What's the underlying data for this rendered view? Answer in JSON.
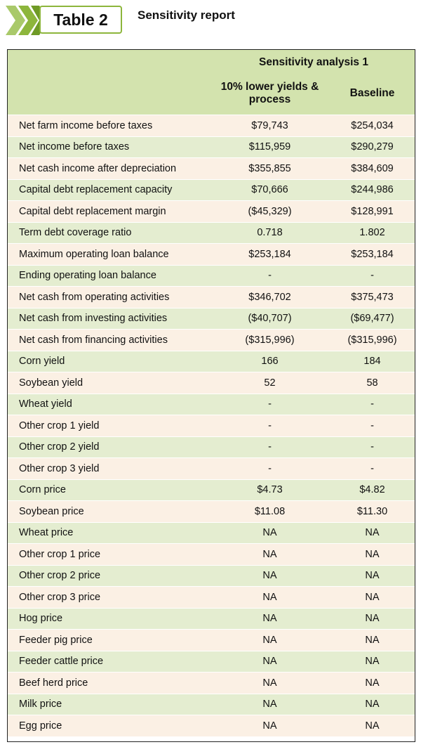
{
  "tag": "Table 2",
  "title": "Sensitivity report",
  "colors": {
    "green": "#8db63c",
    "header_bg": "#d3e3ae",
    "row_light": "#fbf0e4",
    "row_green": "#e4edd0"
  },
  "table": {
    "group_header": "Sensitivity analysis 1",
    "columns": [
      "",
      "10% lower yields & process",
      "Baseline"
    ],
    "rows": [
      {
        "label": "Net farm income before taxes",
        "scenario": "$79,743",
        "baseline": "$254,034"
      },
      {
        "label": "Net income before taxes",
        "scenario": "$115,959",
        "baseline": "$290,279"
      },
      {
        "label": "Net cash income after depreciation",
        "scenario": "$355,855",
        "baseline": "$384,609"
      },
      {
        "label": "Capital debt replacement capacity",
        "scenario": "$70,666",
        "baseline": "$244,986"
      },
      {
        "label": "Capital debt replacement margin",
        "scenario": "($45,329)",
        "baseline": "$128,991"
      },
      {
        "label": "Term debt coverage ratio",
        "scenario": "0.718",
        "baseline": "1.802"
      },
      {
        "label": "Maximum operating loan balance",
        "scenario": "$253,184",
        "baseline": "$253,184"
      },
      {
        "label": "Ending operating loan balance",
        "scenario": "-",
        "baseline": "-"
      },
      {
        "label": "Net cash from operating activities",
        "scenario": "$346,702",
        "baseline": "$375,473"
      },
      {
        "label": "Net cash from investing activities",
        "scenario": "($40,707)",
        "baseline": "($69,477)"
      },
      {
        "label": "Net cash from financing activities",
        "scenario": "($315,996)",
        "baseline": "($315,996)"
      },
      {
        "label": "Corn yield",
        "scenario": "166",
        "baseline": "184"
      },
      {
        "label": "Soybean yield",
        "scenario": "52",
        "baseline": "58"
      },
      {
        "label": "Wheat yield",
        "scenario": "-",
        "baseline": "-"
      },
      {
        "label": "Other crop 1 yield",
        "scenario": "-",
        "baseline": "-"
      },
      {
        "label": "Other crop 2 yield",
        "scenario": "-",
        "baseline": "-"
      },
      {
        "label": "Other crop 3 yield",
        "scenario": "-",
        "baseline": "-"
      },
      {
        "label": "Corn price",
        "scenario": "$4.73",
        "baseline": "$4.82"
      },
      {
        "label": "Soybean price",
        "scenario": "$11.08",
        "baseline": "$11.30"
      },
      {
        "label": "Wheat price",
        "scenario": "NA",
        "baseline": "NA"
      },
      {
        "label": "Other crop 1 price",
        "scenario": "NA",
        "baseline": "NA"
      },
      {
        "label": "Other crop 2 price",
        "scenario": "NA",
        "baseline": "NA"
      },
      {
        "label": "Other crop 3 price",
        "scenario": "NA",
        "baseline": "NA"
      },
      {
        "label": "Hog price",
        "scenario": "NA",
        "baseline": "NA"
      },
      {
        "label": "Feeder pig price",
        "scenario": "NA",
        "baseline": "NA"
      },
      {
        "label": "Feeder cattle price",
        "scenario": "NA",
        "baseline": "NA"
      },
      {
        "label": "Beef herd price",
        "scenario": "NA",
        "baseline": "NA"
      },
      {
        "label": "Milk price",
        "scenario": "NA",
        "baseline": "NA"
      },
      {
        "label": "Egg price",
        "scenario": "NA",
        "baseline": "NA"
      }
    ]
  }
}
